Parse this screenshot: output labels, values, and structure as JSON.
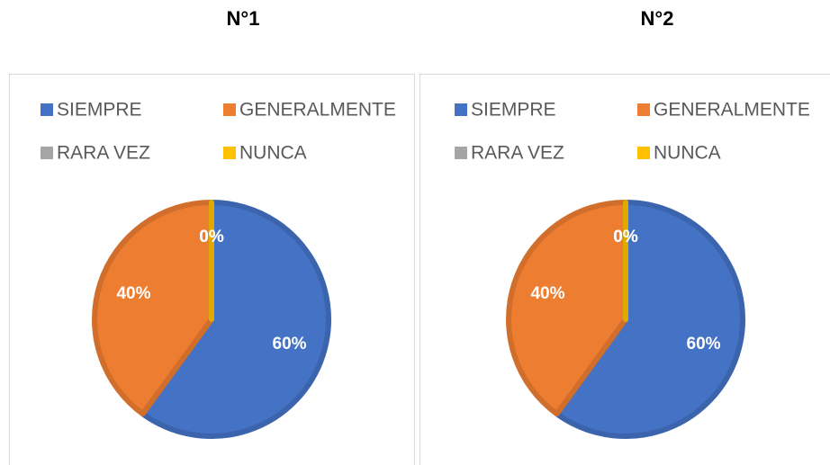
{
  "chart_data": [
    {
      "type": "pie",
      "title": "N°1",
      "categories": [
        "SIEMPRE",
        "GENERALMENTE",
        "RARA VEZ",
        "NUNCA"
      ],
      "values": [
        60,
        40,
        0,
        0
      ],
      "value_labels": [
        "60%",
        "40%",
        "0%",
        "0%"
      ],
      "colors": [
        "#4472c4",
        "#ed7d31",
        "#a5a5a5",
        "#ffc000"
      ],
      "legend": "top"
    },
    {
      "type": "pie",
      "title": "N°2",
      "categories": [
        "SIEMPRE",
        "GENERALMENTE",
        "RARA VEZ",
        "NUNCA"
      ],
      "values": [
        60,
        40,
        0,
        0
      ],
      "value_labels": [
        "60%",
        "40%",
        "0%",
        "0%"
      ],
      "colors": [
        "#4472c4",
        "#ed7d31",
        "#a5a5a5",
        "#ffc000"
      ],
      "legend": "top"
    }
  ]
}
